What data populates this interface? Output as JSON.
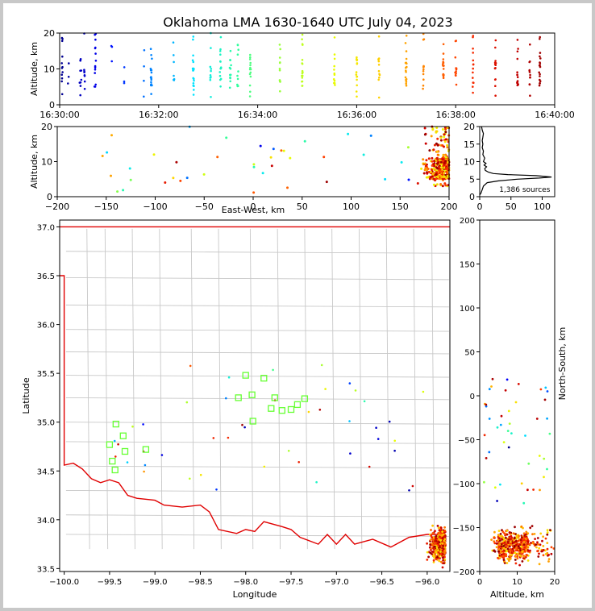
{
  "chart_data": {
    "type": "scatter",
    "title": "Oklahoma LMA 1630-1640 UTC July 04, 2023",
    "colormap": [
      "#00008b",
      "#0000ff",
      "#0080ff",
      "#00e5ff",
      "#33ff99",
      "#a6ff33",
      "#e5ff00",
      "#ffd700",
      "#ff8c00",
      "#ff3300",
      "#cc0000",
      "#8b0000"
    ],
    "panels": [
      {
        "id": "alt-time",
        "ylabel": "Altitude, km",
        "ylim": [
          0,
          20
        ],
        "yticks": [
          "0",
          "10",
          "20"
        ],
        "xticks": [
          "16:30:00",
          "16:32:00",
          "16:34:00",
          "16:36:00",
          "16:38:00",
          "16:40:00"
        ],
        "xlim_minutes": [
          0,
          10
        ]
      },
      {
        "id": "alt-ew",
        "xlabel": "East-West, km",
        "ylabel": "Altitude, km",
        "xlim": [
          -200,
          200
        ],
        "ylim": [
          0,
          20
        ],
        "xticks": [
          "−200",
          "−150",
          "−100",
          "−50",
          "0",
          "50",
          "100",
          "150",
          "200"
        ],
        "yticks": [
          "0",
          "10",
          "20"
        ]
      },
      {
        "id": "alt-hist",
        "annotation": "1,386 sources",
        "xlim": [
          0,
          120
        ],
        "ylim": [
          0,
          20
        ],
        "xticks": [
          "0",
          "50",
          "100"
        ],
        "yticks": [
          "0",
          "5",
          "10",
          "15",
          "20"
        ],
        "profile_alt_km": [
          0.5,
          1,
          2,
          3,
          4,
          4.5,
          5,
          5.3,
          5.6,
          6,
          6.3,
          6.6,
          7,
          7.5,
          8,
          8.5,
          9,
          9.5,
          10,
          11,
          12,
          13,
          14,
          15,
          16,
          17,
          18,
          19,
          20
        ],
        "profile_count": [
          0,
          2,
          4,
          6,
          12,
          30,
          60,
          95,
          115,
          90,
          45,
          22,
          14,
          9,
          8,
          11,
          7,
          10,
          6,
          8,
          5,
          6,
          4,
          5,
          4,
          5,
          6,
          4,
          3
        ]
      },
      {
        "id": "plan-view",
        "xlabel": "Longitude",
        "ylabel": "Latitude",
        "xlim": [
          -100.05,
          -95.75
        ],
        "ylim": [
          33.47,
          37.07
        ],
        "xticks": [
          "−100.0",
          "−99.5",
          "−99.0",
          "−98.5",
          "−98.0",
          "−97.5",
          "−97.0",
          "−96.5",
          "−96.0"
        ],
        "yticks": [
          "33.5",
          "34.0",
          "34.5",
          "35.0",
          "35.5",
          "36.0",
          "36.5",
          "37.0"
        ],
        "stations": [
          [
            -99.5,
            34.77
          ],
          [
            -99.47,
            34.6
          ],
          [
            -99.44,
            34.51
          ],
          [
            -99.43,
            34.98
          ],
          [
            -99.35,
            34.86
          ],
          [
            -99.33,
            34.7
          ],
          [
            -99.1,
            34.72
          ],
          [
            -98.0,
            35.48
          ],
          [
            -98.08,
            35.25
          ],
          [
            -97.93,
            35.28
          ],
          [
            -97.8,
            35.45
          ],
          [
            -97.68,
            35.25
          ],
          [
            -97.72,
            35.14
          ],
          [
            -97.6,
            35.12
          ],
          [
            -97.5,
            35.13
          ],
          [
            -97.43,
            35.18
          ],
          [
            -97.35,
            35.24
          ],
          [
            -97.92,
            35.01
          ]
        ]
      },
      {
        "id": "ns-alt",
        "xlabel": "Altitude, km",
        "ylabel": "North-South, km",
        "xlim": [
          0,
          20
        ],
        "ylim": [
          -200,
          200
        ],
        "xticks": [
          "0",
          "10",
          "20"
        ],
        "yticks": [
          "−200",
          "−150",
          "−100",
          "−50",
          "0",
          "50",
          "100",
          "150",
          "200"
        ]
      }
    ]
  }
}
